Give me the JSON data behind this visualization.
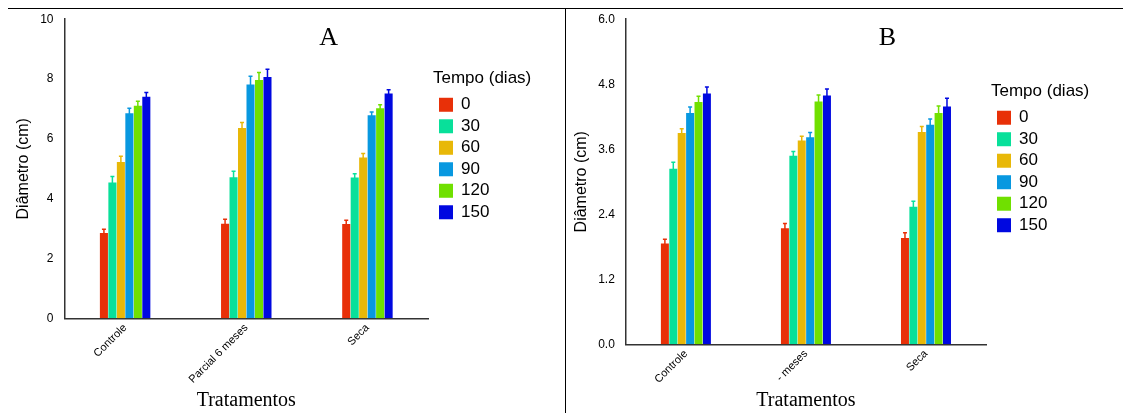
{
  "chart_data": [
    {
      "type": "bar",
      "annotations": [
        "A"
      ],
      "xlabel": "Tratamentos",
      "ylabel": "Diâmetro (cm)",
      "legend_title": "Tempo (dias)",
      "legend": "right",
      "grid": false,
      "categories": [
        "Controle",
        "Parcial 6 meses",
        "Seca"
      ],
      "ylim": [
        0,
        10
      ],
      "yticks": [
        0,
        2,
        4,
        6,
        8,
        10
      ],
      "series": [
        {
          "name": "0",
          "color": "#e83008",
          "values": [
            2.85,
            3.16,
            3.15
          ],
          "errors": [
            0.13,
            0.15,
            0.13
          ]
        },
        {
          "name": "30",
          "color": "#08e09a",
          "values": [
            4.54,
            4.72,
            4.71
          ],
          "errors": [
            0.2,
            0.2,
            0.12
          ]
        },
        {
          "name": "60",
          "color": "#e8b808",
          "values": [
            5.23,
            6.36,
            5.38
          ],
          "errors": [
            0.19,
            0.19,
            0.13
          ]
        },
        {
          "name": "90",
          "color": "#0898e0",
          "values": [
            6.86,
            7.82,
            6.79
          ],
          "errors": [
            0.16,
            0.27,
            0.11
          ]
        },
        {
          "name": "120",
          "color": "#70e000",
          "values": [
            7.11,
            7.97,
            7.02
          ],
          "errors": [
            0.15,
            0.25,
            0.12
          ]
        },
        {
          "name": "150",
          "color": "#0008e0",
          "values": [
            7.41,
            8.07,
            7.52
          ],
          "errors": [
            0.14,
            0.26,
            0.12
          ]
        }
      ]
    },
    {
      "type": "bar",
      "annotations": [
        "B"
      ],
      "xlabel": "Tratamentos",
      "ylabel": "Diâmetro (cm)",
      "legend_title": "Tempo (dias)",
      "legend": "right",
      "grid": false,
      "categories": [
        "Controle",
        "- meses",
        "Seca"
      ],
      "ylim": [
        0,
        6
      ],
      "yticks": [
        {
          "value": 0,
          "label": "0.0"
        },
        1.2,
        2.4,
        3.6,
        4.8,
        {
          "value": 6,
          "label": "6.0"
        }
      ],
      "series": [
        {
          "name": "0",
          "color": "#e83008",
          "values": [
            1.86,
            2.14,
            1.96
          ],
          "errors": [
            0.08,
            0.09,
            0.1
          ]
        },
        {
          "name": "30",
          "color": "#08e09a",
          "values": [
            3.24,
            3.48,
            2.54
          ],
          "errors": [
            0.12,
            0.08,
            0.1
          ]
        },
        {
          "name": "60",
          "color": "#e8b808",
          "values": [
            3.9,
            3.76,
            3.92
          ],
          "errors": [
            0.08,
            0.08,
            0.1
          ]
        },
        {
          "name": "90",
          "color": "#0898e0",
          "values": [
            4.27,
            3.82,
            4.05
          ],
          "errors": [
            0.11,
            0.09,
            0.11
          ]
        },
        {
          "name": "120",
          "color": "#70e000",
          "values": [
            4.47,
            4.48,
            4.27
          ],
          "errors": [
            0.11,
            0.12,
            0.13
          ]
        },
        {
          "name": "150",
          "color": "#0008e0",
          "values": [
            4.63,
            4.59,
            4.39
          ],
          "errors": [
            0.12,
            0.12,
            0.15
          ]
        }
      ]
    }
  ]
}
